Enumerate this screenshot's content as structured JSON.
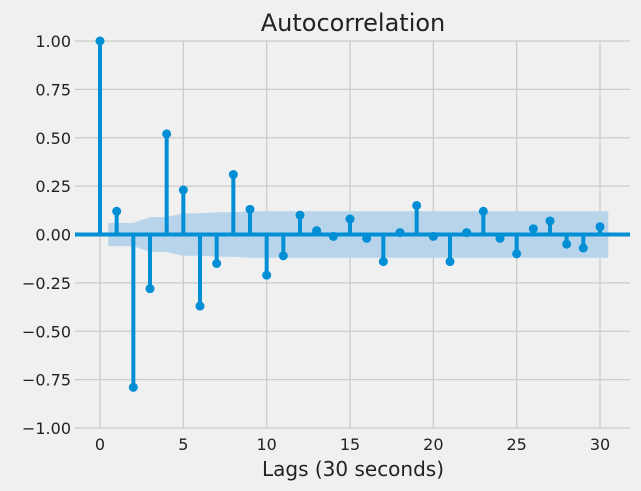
{
  "chart_data": {
    "type": "stem",
    "title": "Autocorrelation",
    "xlabel": "Lags (30 seconds)",
    "ylabel": "",
    "xlim": [
      -1.5,
      31.8
    ],
    "ylim": [
      -1.0,
      1.0
    ],
    "xticks": [
      0,
      5,
      10,
      15,
      20,
      25,
      30
    ],
    "xtick_labels": [
      "0",
      "5",
      "10",
      "15",
      "20",
      "25",
      "30"
    ],
    "yticks": [
      1.0,
      0.75,
      0.5,
      0.25,
      0.0,
      -0.25,
      -0.5,
      -0.75,
      -1.0
    ],
    "ytick_labels": [
      "1.00",
      "0.75",
      "0.50",
      "0.25",
      "0.00",
      "−0.25",
      "−0.50",
      "−0.75",
      "−1.00"
    ],
    "grid": true,
    "colors": {
      "series": "#008fd5",
      "band": "#b7d4ea",
      "grid": "#cbcbcb",
      "background": "#f0f0f0"
    },
    "lags": [
      0,
      1,
      2,
      3,
      4,
      5,
      6,
      7,
      8,
      9,
      10,
      11,
      12,
      13,
      14,
      15,
      16,
      17,
      18,
      19,
      20,
      21,
      22,
      23,
      24,
      25,
      26,
      27,
      28,
      29,
      30
    ],
    "values": [
      1.0,
      0.12,
      -0.79,
      -0.28,
      0.52,
      0.23,
      -0.37,
      -0.15,
      0.31,
      0.13,
      -0.21,
      -0.11,
      0.1,
      0.02,
      -0.01,
      0.08,
      -0.02,
      -0.14,
      0.01,
      0.15,
      -0.01,
      -0.14,
      0.01,
      0.12,
      -0.02,
      -0.1,
      0.03,
      0.07,
      -0.05,
      -0.07,
      0.04
    ],
    "confidence_interval": {
      "lags": [
        0.5,
        1,
        2,
        3,
        4,
        5,
        6,
        7,
        8,
        9,
        10,
        11,
        12,
        13,
        14,
        15,
        16,
        17,
        18,
        19,
        20,
        21,
        22,
        23,
        24,
        25,
        26,
        27,
        28,
        29,
        30.5
      ],
      "upper": [
        0.06,
        0.06,
        0.06,
        0.09,
        0.09,
        0.11,
        0.11,
        0.115,
        0.115,
        0.12,
        0.12,
        0.12,
        0.12,
        0.12,
        0.12,
        0.12,
        0.12,
        0.12,
        0.12,
        0.12,
        0.12,
        0.12,
        0.12,
        0.12,
        0.12,
        0.12,
        0.12,
        0.12,
        0.12,
        0.12,
        0.12
      ]
    }
  }
}
